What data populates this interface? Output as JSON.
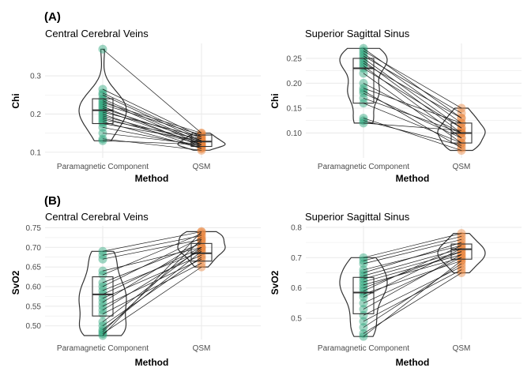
{
  "panel_labels": [
    "(A)",
    "(B)"
  ],
  "colors": {
    "paramagnetic": "#2aa37a",
    "qsm": "#e8843d",
    "line": "#1a1a1a",
    "grid": "#ebebeb"
  },
  "chart_data": [
    {
      "type": "violin-box-paired",
      "title": "Central Cerebral Veins",
      "xlabel": "Method",
      "ylabel": "Chi",
      "categories": [
        "Paramagnetic Component",
        "QSM"
      ],
      "ylim": [
        0.085,
        0.385
      ],
      "yticks": [
        0.1,
        0.2,
        0.3
      ],
      "ytick_labels": [
        "0.1",
        "0.2",
        "0.3"
      ],
      "box_stats": [
        {
          "q1": 0.175,
          "median": 0.21,
          "q3": 0.24
        },
        {
          "q1": 0.115,
          "median": 0.128,
          "q3": 0.145
        }
      ],
      "pairs": [
        [
          0.37,
          0.15
        ],
        [
          0.265,
          0.14
        ],
        [
          0.255,
          0.135
        ],
        [
          0.25,
          0.13
        ],
        [
          0.24,
          0.125
        ],
        [
          0.235,
          0.12
        ],
        [
          0.23,
          0.15
        ],
        [
          0.225,
          0.145
        ],
        [
          0.22,
          0.115
        ],
        [
          0.215,
          0.13
        ],
        [
          0.21,
          0.12
        ],
        [
          0.205,
          0.14
        ],
        [
          0.2,
          0.11
        ],
        [
          0.195,
          0.125
        ],
        [
          0.19,
          0.12
        ],
        [
          0.185,
          0.135
        ],
        [
          0.18,
          0.11
        ],
        [
          0.175,
          0.13
        ],
        [
          0.165,
          0.115
        ],
        [
          0.15,
          0.12
        ],
        [
          0.135,
          0.105
        ],
        [
          0.13,
          0.12
        ]
      ]
    },
    {
      "type": "violin-box-paired",
      "title": "Superior Sagittal Sinus",
      "xlabel": "Method",
      "ylabel": "Chi",
      "categories": [
        "Paramagnetic Component",
        "QSM"
      ],
      "ylim": [
        0.05,
        0.28
      ],
      "yticks": [
        0.1,
        0.15,
        0.2,
        0.25
      ],
      "ytick_labels": [
        "0.10",
        "0.15",
        "0.20",
        "0.25"
      ],
      "box_stats": [
        {
          "q1": 0.16,
          "median": 0.23,
          "q3": 0.25
        },
        {
          "q1": 0.08,
          "median": 0.1,
          "q3": 0.12
        }
      ],
      "pairs": [
        [
          0.27,
          0.13
        ],
        [
          0.265,
          0.15
        ],
        [
          0.26,
          0.12
        ],
        [
          0.255,
          0.14
        ],
        [
          0.25,
          0.11
        ],
        [
          0.245,
          0.1
        ],
        [
          0.24,
          0.13
        ],
        [
          0.235,
          0.09
        ],
        [
          0.23,
          0.11
        ],
        [
          0.22,
          0.08
        ],
        [
          0.2,
          0.1
        ],
        [
          0.19,
          0.12
        ],
        [
          0.185,
          0.07
        ],
        [
          0.18,
          0.09
        ],
        [
          0.17,
          0.1
        ],
        [
          0.16,
          0.08
        ],
        [
          0.13,
          0.065
        ],
        [
          0.125,
          0.075
        ],
        [
          0.12,
          0.105
        ]
      ]
    },
    {
      "type": "violin-box-paired",
      "title": "Central Cerebral Veins",
      "xlabel": "Method",
      "ylabel": "SvO2",
      "categories": [
        "Paramagnetic Component",
        "QSM"
      ],
      "ylim": [
        0.465,
        0.755
      ],
      "yticks": [
        0.5,
        0.55,
        0.6,
        0.65,
        0.7,
        0.75
      ],
      "ytick_labels": [
        "0.50",
        "0.55",
        "0.60",
        "0.65",
        "0.70",
        "0.75"
      ],
      "box_stats": [
        {
          "q1": 0.525,
          "median": 0.58,
          "q3": 0.625
        },
        {
          "q1": 0.665,
          "median": 0.685,
          "q3": 0.71
        }
      ],
      "pairs": [
        [
          0.69,
          0.74
        ],
        [
          0.68,
          0.73
        ],
        [
          0.67,
          0.72
        ],
        [
          0.64,
          0.7
        ],
        [
          0.63,
          0.735
        ],
        [
          0.61,
          0.71
        ],
        [
          0.6,
          0.725
        ],
        [
          0.59,
          0.69
        ],
        [
          0.58,
          0.7
        ],
        [
          0.57,
          0.68
        ],
        [
          0.56,
          0.715
        ],
        [
          0.55,
          0.67
        ],
        [
          0.54,
          0.695
        ],
        [
          0.53,
          0.66
        ],
        [
          0.51,
          0.7
        ],
        [
          0.5,
          0.675
        ],
        [
          0.49,
          0.69
        ],
        [
          0.485,
          0.72
        ],
        [
          0.48,
          0.65
        ],
        [
          0.475,
          0.74
        ]
      ]
    },
    {
      "type": "violin-box-paired",
      "title": "Superior Sagittal Sinus",
      "xlabel": "Method",
      "ylabel": "SvO2",
      "categories": [
        "Paramagnetic Component",
        "QSM"
      ],
      "ylim": [
        0.43,
        0.805
      ],
      "yticks": [
        0.5,
        0.6,
        0.7,
        0.8
      ],
      "ytick_labels": [
        "0.5",
        "0.6",
        "0.7",
        "0.8"
      ],
      "box_stats": [
        {
          "q1": 0.515,
          "median": 0.585,
          "q3": 0.635
        },
        {
          "q1": 0.695,
          "median": 0.728,
          "q3": 0.745
        }
      ],
      "pairs": [
        [
          0.7,
          0.78
        ],
        [
          0.69,
          0.77
        ],
        [
          0.68,
          0.76
        ],
        [
          0.66,
          0.74
        ],
        [
          0.65,
          0.75
        ],
        [
          0.64,
          0.73
        ],
        [
          0.63,
          0.72
        ],
        [
          0.62,
          0.71
        ],
        [
          0.61,
          0.7
        ],
        [
          0.6,
          0.72
        ],
        [
          0.59,
          0.74
        ],
        [
          0.58,
          0.69
        ],
        [
          0.57,
          0.73
        ],
        [
          0.55,
          0.7
        ],
        [
          0.53,
          0.71
        ],
        [
          0.51,
          0.67
        ],
        [
          0.49,
          0.66
        ],
        [
          0.47,
          0.68
        ],
        [
          0.45,
          0.65
        ],
        [
          0.44,
          0.69
        ]
      ]
    }
  ]
}
